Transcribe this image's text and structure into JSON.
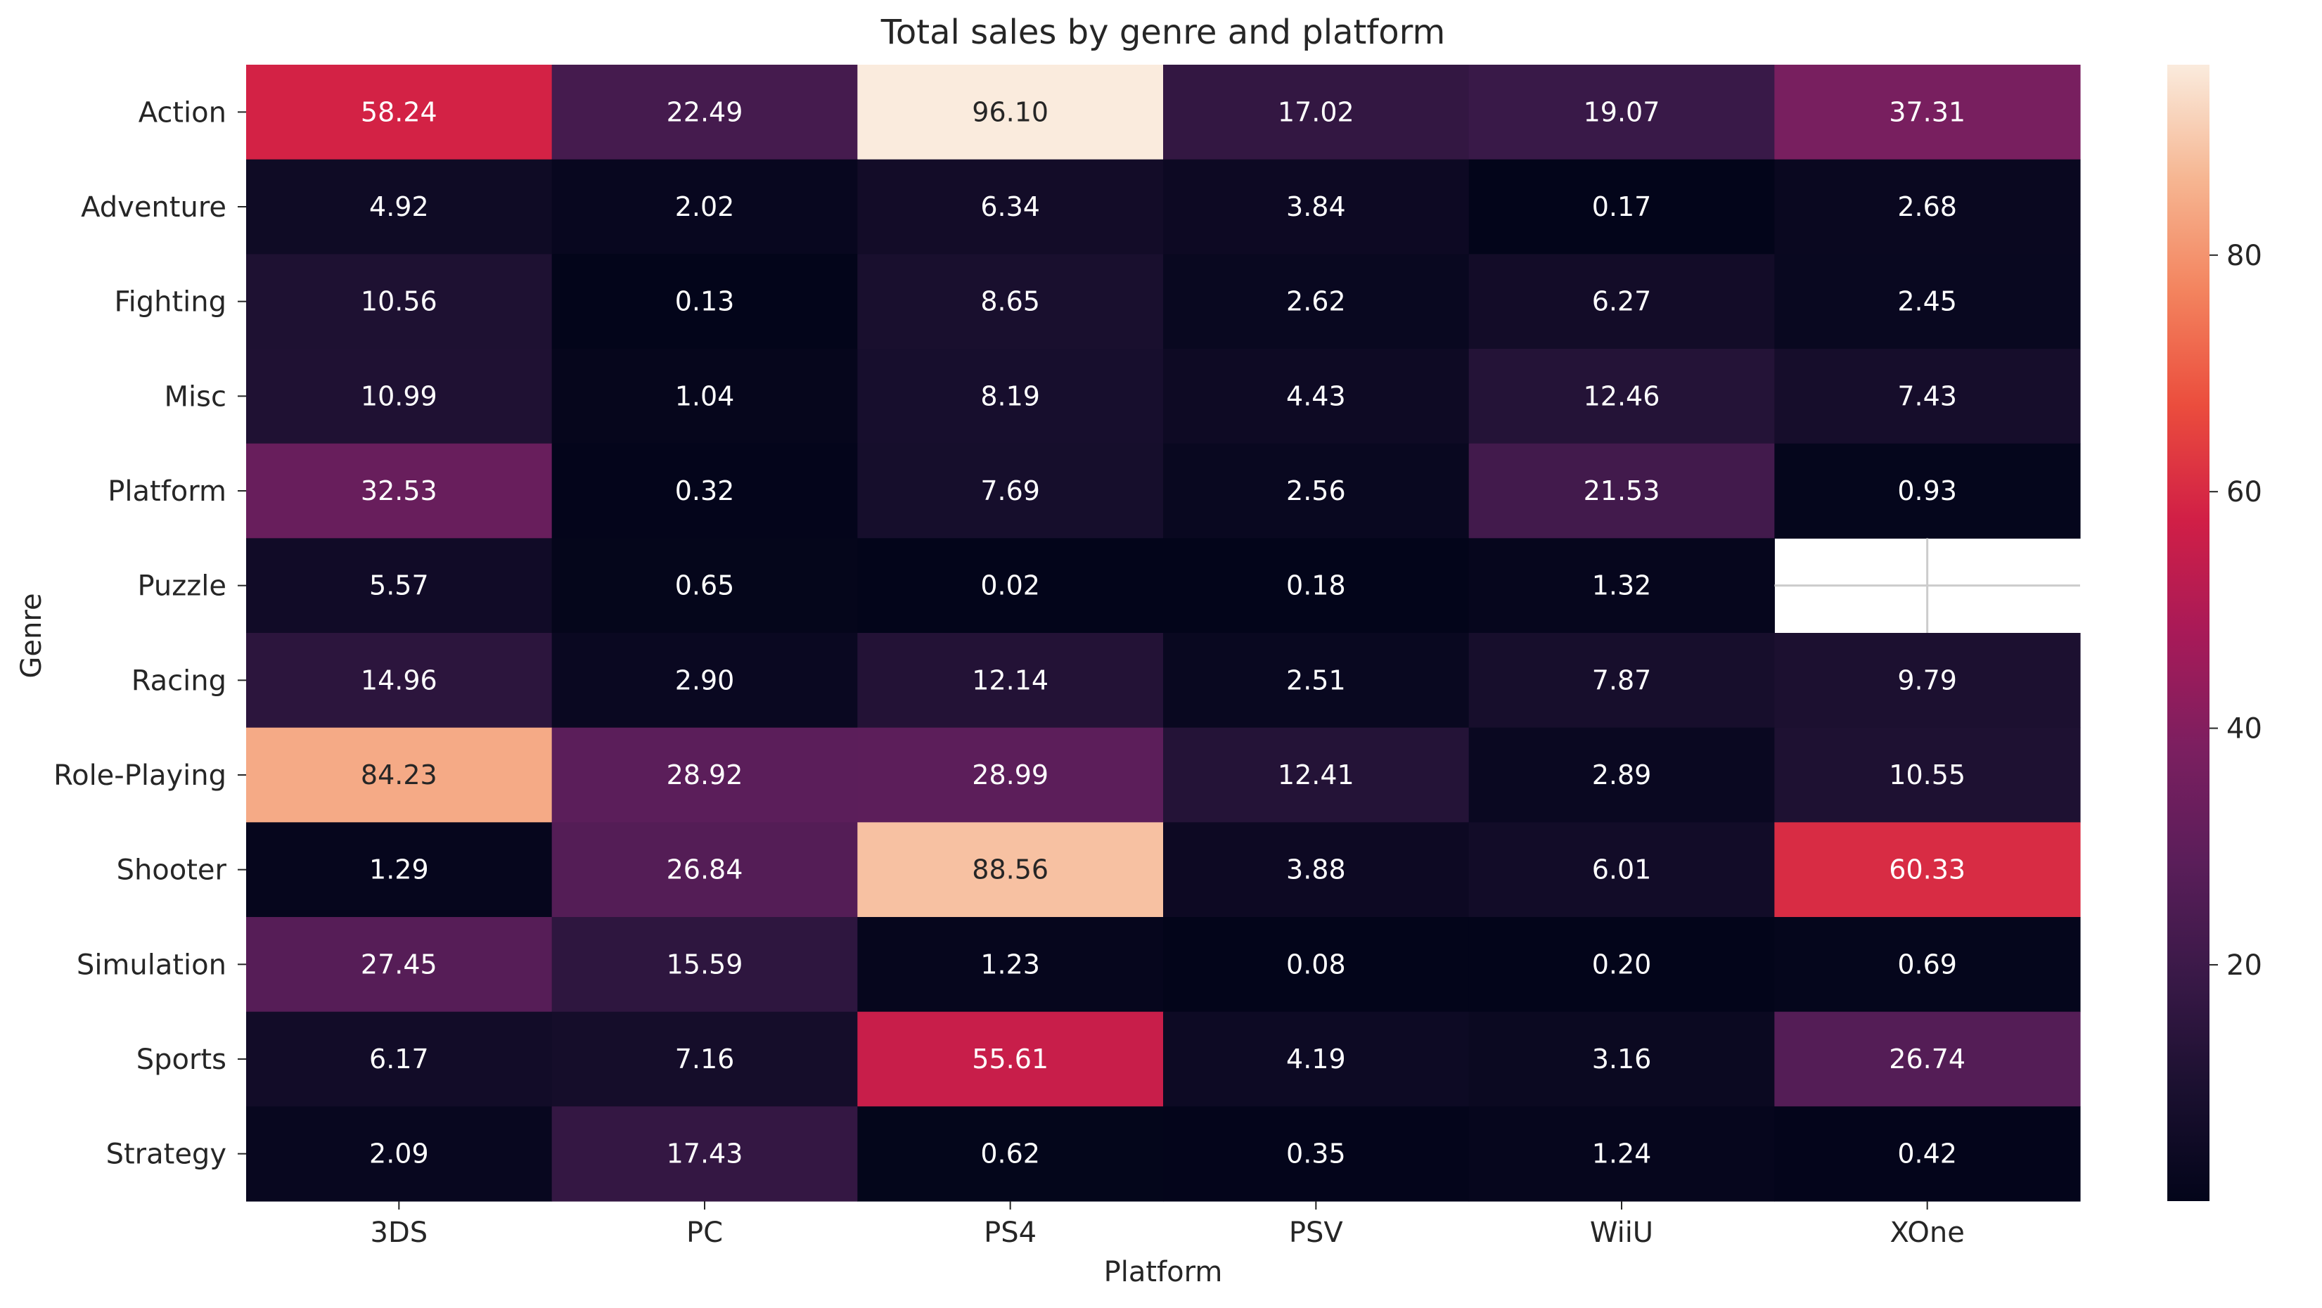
{
  "chart_data": {
    "type": "heatmap",
    "title": "Total sales by genre and platform",
    "xlabel": "Platform",
    "ylabel": "Genre",
    "x_categories": [
      "3DS",
      "PC",
      "PS4",
      "PSV",
      "WiiU",
      "XOne"
    ],
    "y_categories": [
      "Action",
      "Adventure",
      "Fighting",
      "Misc",
      "Platform",
      "Puzzle",
      "Racing",
      "Role-Playing",
      "Shooter",
      "Simulation",
      "Sports",
      "Strategy"
    ],
    "values": [
      [
        58.24,
        22.49,
        96.1,
        17.02,
        19.07,
        37.31
      ],
      [
        4.92,
        2.02,
        6.34,
        3.84,
        0.17,
        2.68
      ],
      [
        10.56,
        0.13,
        8.65,
        2.62,
        6.27,
        2.45
      ],
      [
        10.99,
        1.04,
        8.19,
        4.43,
        12.46,
        7.43
      ],
      [
        32.53,
        0.32,
        7.69,
        2.56,
        21.53,
        0.93
      ],
      [
        5.57,
        0.65,
        0.02,
        0.18,
        1.32,
        null
      ],
      [
        14.96,
        2.9,
        12.14,
        2.51,
        7.87,
        9.79
      ],
      [
        84.23,
        28.92,
        28.99,
        12.41,
        2.89,
        10.55
      ],
      [
        1.29,
        26.84,
        88.56,
        3.88,
        6.01,
        60.33
      ],
      [
        27.45,
        15.59,
        1.23,
        0.08,
        0.2,
        0.69
      ],
      [
        6.17,
        7.16,
        55.61,
        4.19,
        3.16,
        26.74
      ],
      [
        2.09,
        17.43,
        0.62,
        0.35,
        1.24,
        0.42
      ]
    ],
    "value_format": "2 decimals",
    "missing_cells": "blank",
    "colormap": "rocket",
    "colorbar": {
      "vmin": 0.02,
      "vmax": 96.1,
      "ticks": [
        20,
        40,
        60,
        80
      ]
    },
    "grid": false
  }
}
